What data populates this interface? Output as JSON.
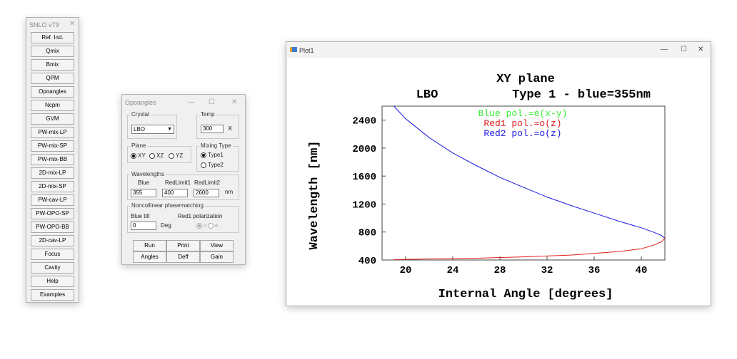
{
  "snlo": {
    "title": "SNLO v79",
    "close": "✕",
    "buttons": [
      "Ref. Ind.",
      "Qmix",
      "Bmix",
      "QPM",
      "Opoangles",
      "Ncpm",
      "GVM",
      "PW-mix-LP",
      "PW-mix-SP",
      "PW-mix-BB",
      "2D-mix-LP",
      "2D-mix-SP",
      "PW-cav-LP",
      "PW-OPO-SP",
      "PW-OPO-BB",
      "2D-cav-LP",
      "Focus",
      "Cavity",
      "Help",
      "Examples"
    ]
  },
  "opo": {
    "title": "Opoangles",
    "minimize": "—",
    "maximize": "☐",
    "close": "✕",
    "crystal_label": "Crystal",
    "crystal_value": "LBO",
    "temp_label": "Temp",
    "temp_value": "300",
    "temp_unit": "K",
    "plane_label": "Plane",
    "plane_xy": "XY",
    "plane_xz": "XZ",
    "plane_yz": "YZ",
    "mixing_label": "Mixing Type",
    "type1": "Type1",
    "type2": "Type2",
    "wave_label": "Wavelengths",
    "blue_label": "Blue",
    "red1_label": "RedLimit1",
    "red2_label": "RedLimit2",
    "blue_value": "355",
    "red1_value": "400",
    "red2_value": "2600",
    "nm_unit": "nm",
    "nonc_label": "Noncollinear phasematching",
    "blue_tilt_label": "Blue tilt",
    "blue_tilt_value": "0",
    "deg_unit": "Deg",
    "red1pol_label": "Red1 polarization",
    "pol_o": "o",
    "pol_e": "e",
    "run": "Run",
    "print": "Print",
    "view": "View",
    "angles": "Angles",
    "deff": "Deff",
    "gain": "Gain"
  },
  "plot": {
    "window_title": "Plot1",
    "minimize": "—",
    "maximize": "☐",
    "close": "✕"
  },
  "chart_data": {
    "type": "line",
    "title": "XY plane",
    "subtitle_left": "LBO",
    "subtitle_right": "Type 1 - blue=355nm",
    "xlabel": "Internal Angle [degrees]",
    "ylabel": "Wavelength [nm]",
    "xlim": [
      18,
      42
    ],
    "ylim": [
      400,
      2600
    ],
    "xticks": [
      20,
      24,
      28,
      32,
      36,
      40
    ],
    "yticks": [
      400,
      800,
      1200,
      1600,
      2000,
      2400
    ],
    "grid": false,
    "legend": [
      "Blue pol.=e(x-y)",
      "Red1 pol.=o(z)",
      "Red2 pol.=o(z)"
    ],
    "colors": {
      "blue_pol": "#33ee33",
      "red1": "#e02020",
      "red2": "#1a1ae0",
      "text": "#111111"
    },
    "series": [
      {
        "name": "Red2 pol.=o(z)",
        "color": "#1a1ae0",
        "x": [
          19.0,
          20,
          22,
          24,
          26,
          28,
          30,
          32,
          34,
          36,
          38,
          40,
          41,
          41.7,
          42.0
        ],
        "y": [
          2600,
          2420,
          2150,
          1930,
          1750,
          1580,
          1440,
          1300,
          1180,
          1070,
          960,
          860,
          800,
          750,
          710
        ]
      },
      {
        "name": "Red1 pol.=o(z)",
        "color": "#e02020",
        "x": [
          19.0,
          22,
          26,
          30,
          34,
          38,
          40,
          41,
          41.7,
          42.0
        ],
        "y": [
          405,
          415,
          425,
          445,
          470,
          520,
          560,
          610,
          660,
          710
        ]
      }
    ]
  }
}
